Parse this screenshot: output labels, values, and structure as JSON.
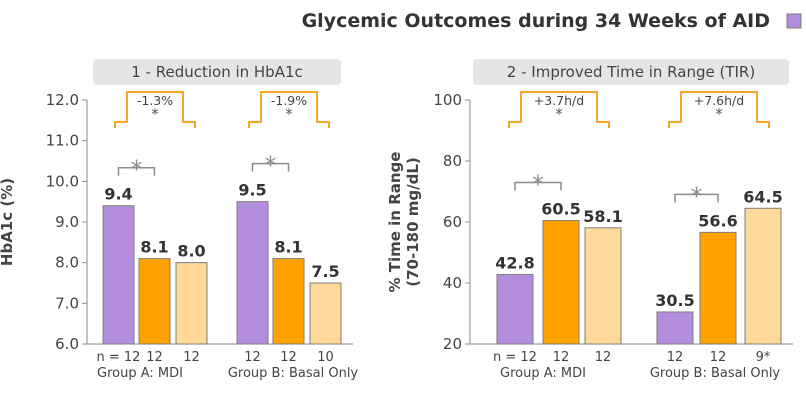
{
  "figure": {
    "title": "Glycemic Outcomes during 34 Weeks of AID",
    "top_partial_text": "",
    "legend_swatch_color": "#b48ede"
  },
  "colors": {
    "purple": "#b48ede",
    "orange": "#ffa200",
    "light_orange": "#fed99a",
    "bracket": "#f6a623",
    "bar_outline": "#7d7d7d",
    "panel_header_bg": "#e5e5e5"
  },
  "chart_data": [
    {
      "type": "bar",
      "title": "1 - Reduction in HbA1c",
      "ylabel": "HbA1c (%)",
      "xlabel": "",
      "ylim": [
        6.0,
        12.0
      ],
      "yticks": [
        "6.0",
        "7.0",
        "8.0",
        "9.0",
        "10.0",
        "11.0",
        "12.0"
      ],
      "grid": false,
      "groups": [
        {
          "name": "Group A: MDI",
          "values": [
            9.4,
            8.1,
            8.0
          ],
          "value_labels": [
            "9.4",
            "8.1",
            "8.0"
          ],
          "n_labels": [
            "n = 12",
            "12",
            "12"
          ],
          "change_label": "-1.3%",
          "change_star": "*",
          "sig_star": "*"
        },
        {
          "name": "Group B: Basal Only",
          "values": [
            9.5,
            8.1,
            7.5
          ],
          "value_labels": [
            "9.5",
            "8.1",
            "7.5"
          ],
          "n_labels": [
            "12",
            "12",
            "10"
          ],
          "change_label": "-1.9%",
          "change_star": "*",
          "sig_star": "*"
        }
      ]
    },
    {
      "type": "bar",
      "title": "2 - Improved Time in Range (TIR)",
      "ylabel": "% Time in Range",
      "ylabel2": "(70-180 mg/dL)",
      "xlabel": "",
      "ylim": [
        20,
        100
      ],
      "yticks": [
        "20",
        "40",
        "60",
        "80",
        "100"
      ],
      "grid": false,
      "groups": [
        {
          "name": "Group A: MDI",
          "values": [
            42.8,
            60.5,
            58.1
          ],
          "value_labels": [
            "42.8",
            "60.5",
            "58.1"
          ],
          "n_labels": [
            "n = 12",
            "12",
            "12"
          ],
          "change_label": "+3.7h/d",
          "change_star": "*",
          "sig_star": "*"
        },
        {
          "name": "Group B: Basal Only",
          "values": [
            30.5,
            56.6,
            64.5
          ],
          "value_labels": [
            "30.5",
            "56.6",
            "64.5"
          ],
          "n_labels": [
            "12",
            "12",
            "9*"
          ],
          "change_label": "+7.6h/d",
          "change_star": "*",
          "sig_star": "*"
        }
      ]
    }
  ]
}
